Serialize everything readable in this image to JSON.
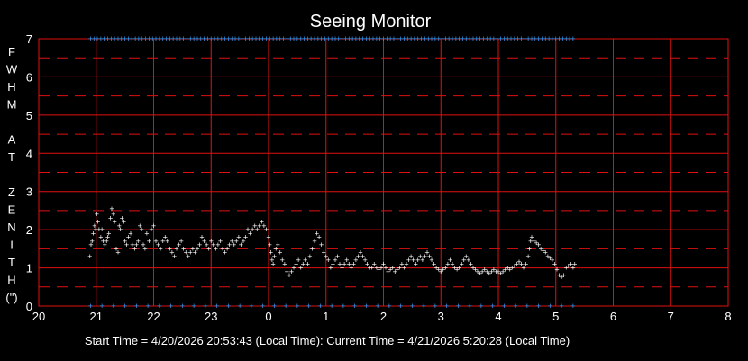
{
  "chart_data": {
    "type": "scatter",
    "title": "Seeing Monitor",
    "ylabel_letters": [
      "F",
      "W",
      "H",
      "M",
      "",
      "A",
      "T",
      "",
      "Z",
      "E",
      "N",
      "I",
      "T",
      "H",
      "(\")"
    ],
    "x_ticks": [
      {
        "v": 20,
        "label": "20"
      },
      {
        "v": 21,
        "label": "21"
      },
      {
        "v": 22,
        "label": "22"
      },
      {
        "v": 23,
        "label": "23"
      },
      {
        "v": 24,
        "label": "0"
      },
      {
        "v": 25,
        "label": "1"
      },
      {
        "v": 26,
        "label": "2"
      },
      {
        "v": 27,
        "label": "3"
      },
      {
        "v": 28,
        "label": "4"
      },
      {
        "v": 29,
        "label": "5"
      },
      {
        "v": 30,
        "label": "6"
      },
      {
        "v": 31,
        "label": "7"
      },
      {
        "v": 32,
        "label": "8"
      }
    ],
    "y_ticks": [
      0,
      1,
      2,
      3,
      4,
      5,
      6,
      7
    ],
    "xlim": [
      20,
      32
    ],
    "ylim": [
      0,
      7
    ],
    "grid": true,
    "grid_color": "#e01010",
    "point_color": "#ffffff",
    "marker_color": "#3aa0ff",
    "footer": "Start Time = 4/20/2026 20:53:43 (Local Time):  Current Time = 4/21/2026 5:20:28 (Local Time)",
    "marker_range": [
      20.9,
      29.33
    ],
    "series": [
      {
        "values": [
          [
            20.89,
            1.3
          ],
          [
            20.91,
            1.6
          ],
          [
            20.93,
            1.7
          ],
          [
            20.95,
            1.9
          ],
          [
            20.97,
            2.1
          ],
          [
            20.99,
            2.0
          ],
          [
            21.01,
            2.4
          ],
          [
            21.03,
            2.2
          ],
          [
            21.05,
            2.0
          ],
          [
            21.08,
            1.8
          ],
          [
            21.1,
            2.0
          ],
          [
            21.12,
            1.7
          ],
          [
            21.15,
            1.6
          ],
          [
            21.18,
            1.7
          ],
          [
            21.2,
            1.8
          ],
          [
            21.22,
            1.9
          ],
          [
            21.25,
            2.3
          ],
          [
            21.27,
            2.55
          ],
          [
            21.3,
            2.4
          ],
          [
            21.32,
            2.2
          ],
          [
            21.35,
            1.5
          ],
          [
            21.38,
            1.4
          ],
          [
            21.4,
            2.1
          ],
          [
            21.42,
            2.0
          ],
          [
            21.45,
            2.3
          ],
          [
            21.48,
            2.2
          ],
          [
            21.5,
            1.7
          ],
          [
            21.53,
            1.6
          ],
          [
            21.56,
            1.8
          ],
          [
            21.6,
            1.9
          ],
          [
            21.63,
            1.6
          ],
          [
            21.67,
            1.5
          ],
          [
            21.7,
            1.6
          ],
          [
            21.73,
            1.7
          ],
          [
            21.76,
            2.1
          ],
          [
            21.79,
            2.0
          ],
          [
            21.82,
            1.6
          ],
          [
            21.85,
            1.5
          ],
          [
            21.88,
            1.9
          ],
          [
            21.92,
            1.7
          ],
          [
            21.96,
            2.0
          ],
          [
            22.0,
            2.1
          ],
          [
            22.04,
            1.7
          ],
          [
            22.08,
            1.6
          ],
          [
            22.12,
            1.5
          ],
          [
            22.16,
            1.7
          ],
          [
            22.2,
            1.8
          ],
          [
            22.24,
            1.7
          ],
          [
            22.28,
            1.5
          ],
          [
            22.32,
            1.4
          ],
          [
            22.36,
            1.3
          ],
          [
            22.4,
            1.5
          ],
          [
            22.44,
            1.6
          ],
          [
            22.48,
            1.7
          ],
          [
            22.52,
            1.5
          ],
          [
            22.56,
            1.4
          ],
          [
            22.6,
            1.3
          ],
          [
            22.64,
            1.4
          ],
          [
            22.68,
            1.5
          ],
          [
            22.72,
            1.4
          ],
          [
            22.76,
            1.5
          ],
          [
            22.8,
            1.6
          ],
          [
            22.84,
            1.8
          ],
          [
            22.88,
            1.7
          ],
          [
            22.92,
            1.6
          ],
          [
            22.96,
            1.5
          ],
          [
            23.0,
            1.7
          ],
          [
            23.04,
            1.6
          ],
          [
            23.08,
            1.5
          ],
          [
            23.12,
            1.6
          ],
          [
            23.16,
            1.7
          ],
          [
            23.2,
            1.5
          ],
          [
            23.24,
            1.4
          ],
          [
            23.28,
            1.5
          ],
          [
            23.32,
            1.6
          ],
          [
            23.36,
            1.7
          ],
          [
            23.4,
            1.6
          ],
          [
            23.44,
            1.7
          ],
          [
            23.48,
            1.8
          ],
          [
            23.52,
            1.6
          ],
          [
            23.56,
            1.7
          ],
          [
            23.6,
            1.8
          ],
          [
            23.64,
            2.0
          ],
          [
            23.68,
            1.9
          ],
          [
            23.72,
            2.0
          ],
          [
            23.76,
            2.1
          ],
          [
            23.8,
            2.0
          ],
          [
            23.84,
            2.1
          ],
          [
            23.88,
            2.2
          ],
          [
            23.92,
            2.1
          ],
          [
            23.96,
            2.0
          ],
          [
            24.0,
            1.8
          ],
          [
            24.02,
            1.6
          ],
          [
            24.04,
            1.4
          ],
          [
            24.06,
            1.2
          ],
          [
            24.08,
            1.1
          ],
          [
            24.1,
            1.3
          ],
          [
            24.13,
            1.5
          ],
          [
            24.16,
            1.6
          ],
          [
            24.2,
            1.4
          ],
          [
            24.24,
            1.2
          ],
          [
            24.28,
            1.1
          ],
          [
            24.32,
            0.9
          ],
          [
            24.36,
            0.8
          ],
          [
            24.4,
            0.9
          ],
          [
            24.44,
            1.0
          ],
          [
            24.48,
            1.1
          ],
          [
            24.52,
            1.2
          ],
          [
            24.56,
            1.0
          ],
          [
            24.6,
            1.1
          ],
          [
            24.64,
            1.2
          ],
          [
            24.68,
            1.1
          ],
          [
            24.72,
            1.3
          ],
          [
            24.76,
            1.5
          ],
          [
            24.8,
            1.7
          ],
          [
            24.84,
            1.9
          ],
          [
            24.88,
            1.8
          ],
          [
            24.92,
            1.6
          ],
          [
            24.96,
            1.4
          ],
          [
            25.0,
            1.3
          ],
          [
            25.04,
            1.2
          ],
          [
            25.08,
            1.0
          ],
          [
            25.12,
            1.1
          ],
          [
            25.16,
            1.2
          ],
          [
            25.2,
            1.3
          ],
          [
            25.24,
            1.1
          ],
          [
            25.28,
            1.0
          ],
          [
            25.32,
            1.1
          ],
          [
            25.36,
            1.2
          ],
          [
            25.4,
            1.1
          ],
          [
            25.44,
            1.0
          ],
          [
            25.48,
            1.1
          ],
          [
            25.52,
            1.2
          ],
          [
            25.56,
            1.3
          ],
          [
            25.6,
            1.4
          ],
          [
            25.64,
            1.3
          ],
          [
            25.68,
            1.2
          ],
          [
            25.72,
            1.1
          ],
          [
            25.76,
            1.0
          ],
          [
            25.8,
            1.0
          ],
          [
            25.84,
            1.1
          ],
          [
            25.88,
            1.0
          ],
          [
            25.92,
            0.95
          ],
          [
            25.96,
            1.0
          ],
          [
            26.0,
            1.1
          ],
          [
            26.04,
            1.0
          ],
          [
            26.08,
            0.9
          ],
          [
            26.12,
            0.95
          ],
          [
            26.16,
            1.0
          ],
          [
            26.2,
            0.9
          ],
          [
            26.24,
            0.95
          ],
          [
            26.28,
            1.0
          ],
          [
            26.32,
            1.1
          ],
          [
            26.36,
            1.0
          ],
          [
            26.4,
            1.1
          ],
          [
            26.44,
            1.2
          ],
          [
            26.48,
            1.3
          ],
          [
            26.52,
            1.2
          ],
          [
            26.56,
            1.1
          ],
          [
            26.6,
            1.2
          ],
          [
            26.64,
            1.3
          ],
          [
            26.68,
            1.2
          ],
          [
            26.72,
            1.3
          ],
          [
            26.76,
            1.4
          ],
          [
            26.8,
            1.3
          ],
          [
            26.84,
            1.2
          ],
          [
            26.88,
            1.1
          ],
          [
            26.92,
            1.0
          ],
          [
            26.96,
            0.95
          ],
          [
            27.0,
            0.9
          ],
          [
            27.04,
            0.95
          ],
          [
            27.08,
            1.0
          ],
          [
            27.12,
            1.1
          ],
          [
            27.16,
            1.2
          ],
          [
            27.2,
            1.1
          ],
          [
            27.24,
            1.0
          ],
          [
            27.28,
            0.95
          ],
          [
            27.32,
            1.0
          ],
          [
            27.36,
            1.1
          ],
          [
            27.4,
            1.2
          ],
          [
            27.44,
            1.3
          ],
          [
            27.48,
            1.2
          ],
          [
            27.52,
            1.1
          ],
          [
            27.56,
            1.0
          ],
          [
            27.6,
            0.95
          ],
          [
            27.64,
            0.9
          ],
          [
            27.68,
            0.85
          ],
          [
            27.72,
            0.9
          ],
          [
            27.76,
            0.95
          ],
          [
            27.8,
            0.9
          ],
          [
            27.84,
            0.85
          ],
          [
            27.88,
            0.9
          ],
          [
            27.92,
            0.95
          ],
          [
            27.96,
            0.9
          ],
          [
            28.0,
            0.9
          ],
          [
            28.04,
            0.85
          ],
          [
            28.08,
            0.9
          ],
          [
            28.12,
            0.95
          ],
          [
            28.16,
            1.0
          ],
          [
            28.2,
            0.95
          ],
          [
            28.24,
            1.0
          ],
          [
            28.28,
            1.05
          ],
          [
            28.32,
            1.1
          ],
          [
            28.36,
            1.15
          ],
          [
            28.4,
            1.1
          ],
          [
            28.44,
            1.0
          ],
          [
            28.48,
            1.1
          ],
          [
            28.52,
            1.3
          ],
          [
            28.54,
            1.5
          ],
          [
            28.56,
            1.7
          ],
          [
            28.58,
            1.8
          ],
          [
            28.62,
            1.7
          ],
          [
            28.66,
            1.65
          ],
          [
            28.7,
            1.6
          ],
          [
            28.74,
            1.5
          ],
          [
            28.78,
            1.45
          ],
          [
            28.82,
            1.4
          ],
          [
            28.86,
            1.3
          ],
          [
            28.9,
            1.25
          ],
          [
            28.94,
            1.2
          ],
          [
            28.98,
            1.1
          ],
          [
            29.02,
            0.95
          ],
          [
            29.06,
            0.8
          ],
          [
            29.1,
            0.75
          ],
          [
            29.14,
            0.8
          ],
          [
            29.18,
            1.0
          ],
          [
            29.22,
            1.05
          ],
          [
            29.26,
            1.1
          ],
          [
            29.3,
            1.0
          ],
          [
            29.33,
            1.1
          ]
        ]
      }
    ]
  }
}
